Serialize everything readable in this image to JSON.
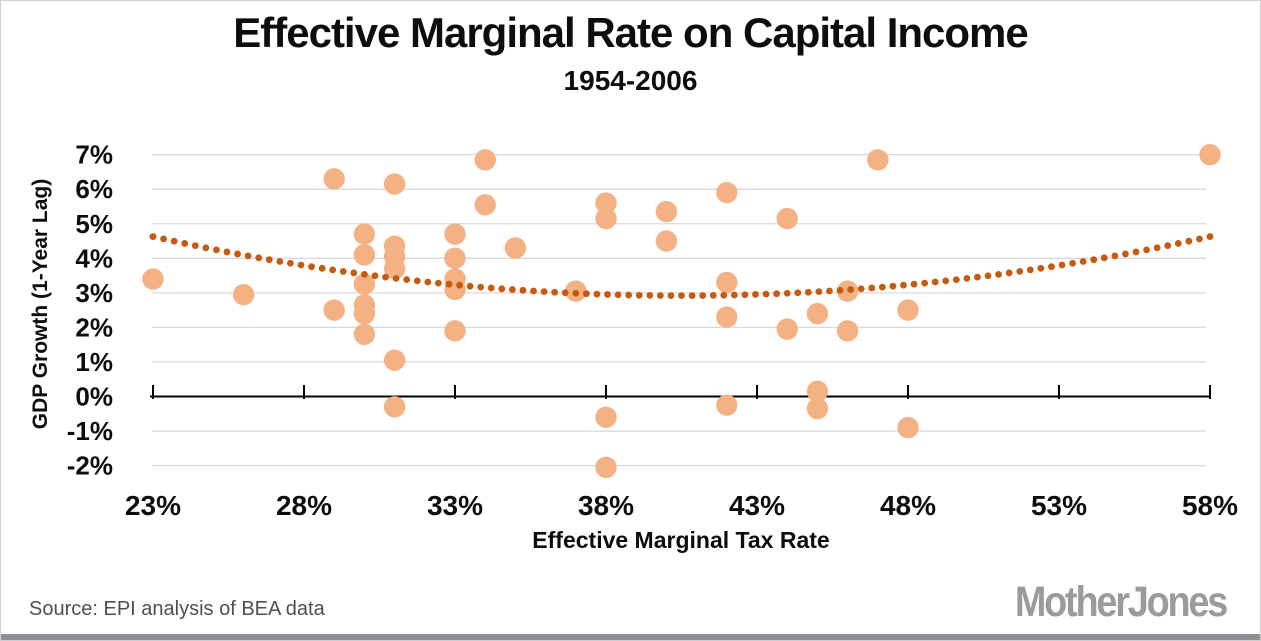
{
  "header": {
    "title": "Effective Marginal Rate on Capital Income",
    "subtitle": "1954-2006"
  },
  "footer": {
    "source": "Source: EPI analysis of BEA data",
    "logo": "MotherJones"
  },
  "chart_data": {
    "type": "scatter",
    "title": "Effective Marginal Rate on Capital Income",
    "subtitle": "1954-2006",
    "xlabel": "Effective Marginal Tax Rate",
    "ylabel": "GDP Growth (1-Year Lag)",
    "xlim": [
      23,
      58
    ],
    "ylim": [
      -2,
      7
    ],
    "grid": true,
    "legend": "none",
    "x_tick_labels": [
      "23%",
      "28%",
      "33%",
      "38%",
      "43%",
      "48%",
      "53%",
      "58%"
    ],
    "x_tick_values": [
      23,
      28,
      33,
      38,
      43,
      48,
      53,
      58
    ],
    "y_tick_labels": [
      "7%",
      "6%",
      "5%",
      "4%",
      "3%",
      "2%",
      "1%",
      "0%",
      "-1%",
      "-2%"
    ],
    "y_tick_values": [
      7,
      6,
      5,
      4,
      3,
      2,
      1,
      0,
      -1,
      -2
    ],
    "points": [
      [
        23,
        3.4
      ],
      [
        26,
        2.95
      ],
      [
        29,
        6.3
      ],
      [
        29,
        2.5
      ],
      [
        30,
        4.7
      ],
      [
        30,
        4.1
      ],
      [
        30,
        3.25
      ],
      [
        30,
        2.65
      ],
      [
        30,
        2.4
      ],
      [
        30,
        1.8
      ],
      [
        31,
        6.15
      ],
      [
        31,
        4.35
      ],
      [
        31,
        4.05
      ],
      [
        31,
        3.7
      ],
      [
        31,
        1.05
      ],
      [
        31,
        -0.3
      ],
      [
        33,
        4.7
      ],
      [
        33,
        4.0
      ],
      [
        33,
        3.4
      ],
      [
        33,
        3.1
      ],
      [
        33,
        1.9
      ],
      [
        34,
        6.85
      ],
      [
        34,
        5.55
      ],
      [
        35,
        4.3
      ],
      [
        37,
        3.05
      ],
      [
        38,
        5.6
      ],
      [
        38,
        5.15
      ],
      [
        38,
        -0.6
      ],
      [
        38,
        -2.05
      ],
      [
        40,
        5.35
      ],
      [
        40,
        4.5
      ],
      [
        42,
        5.9
      ],
      [
        42,
        3.3
      ],
      [
        42,
        2.3
      ],
      [
        42,
        -0.25
      ],
      [
        44,
        5.15
      ],
      [
        44,
        1.95
      ],
      [
        45,
        2.4
      ],
      [
        45,
        0.15
      ],
      [
        45,
        -0.35
      ],
      [
        46,
        3.05
      ],
      [
        46,
        1.9
      ],
      [
        47,
        6.85
      ],
      [
        48,
        2.5
      ],
      [
        48,
        -0.9
      ],
      [
        58,
        7.0
      ]
    ],
    "trendline": {
      "type": "quadratic-dotted",
      "vertex_x": 40.5,
      "vertex_y": 2.92,
      "coeff_a": 0.00558,
      "start_x": 23,
      "end_x": 58,
      "start_y": 4.63,
      "end_y": 4.63
    },
    "colors": {
      "point": "#F4B183",
      "trend": "#C55A11",
      "grid": "#D9D9D9",
      "axis": "#000000"
    }
  }
}
